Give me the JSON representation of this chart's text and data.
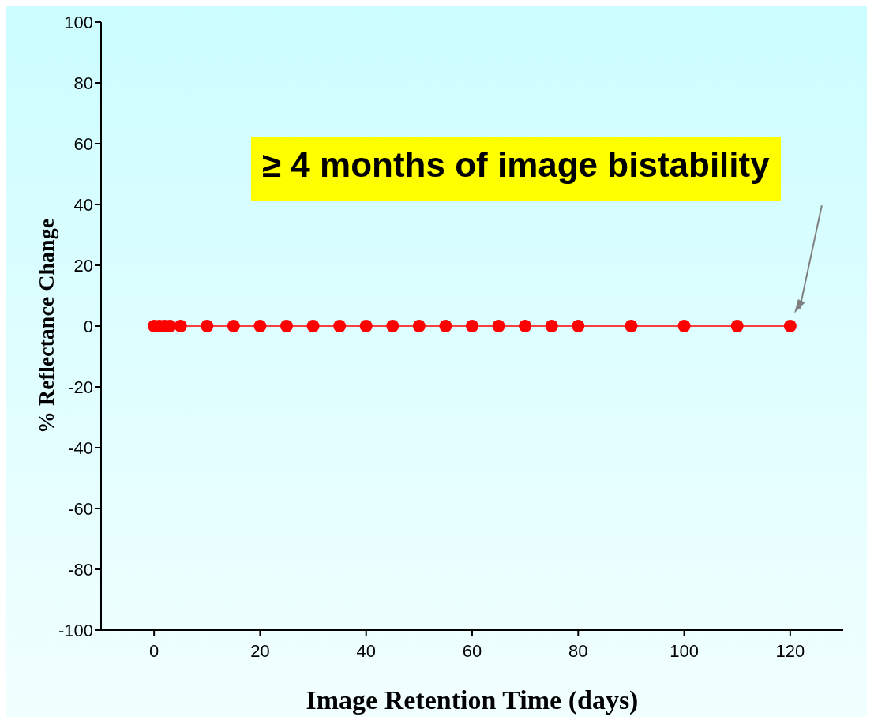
{
  "chart_data": {
    "type": "line",
    "xlabel": "Image Retention Time (days)",
    "ylabel": "% Reflectance Change",
    "x": [
      0,
      1,
      2,
      3,
      5,
      10,
      15,
      20,
      25,
      30,
      35,
      40,
      45,
      50,
      55,
      60,
      65,
      70,
      75,
      80,
      90,
      100,
      110,
      120
    ],
    "series": [
      {
        "color": "#ff0000",
        "values": [
          0,
          0,
          0,
          0,
          0,
          0,
          0,
          0,
          0,
          0,
          0,
          0,
          0,
          0,
          0,
          0,
          0,
          0,
          0,
          0,
          0,
          0,
          0,
          0
        ]
      }
    ],
    "xlim": [
      -10,
      130
    ],
    "xticks": [
      0,
      20,
      40,
      60,
      80,
      100,
      120
    ],
    "ylim": [
      -100,
      100
    ],
    "yticks": [
      -100,
      -80,
      -60,
      -40,
      -20,
      0,
      20,
      40,
      60,
      80,
      100
    ],
    "marker": "circle",
    "line_style": "solid",
    "grid": false,
    "legend": false,
    "annotations": [
      "≥ 4 months of image bistability"
    ]
  }
}
